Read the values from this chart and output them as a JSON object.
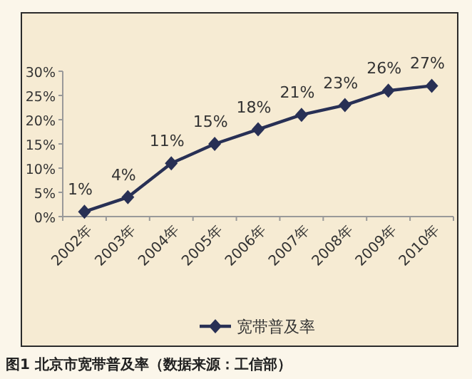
{
  "chart_data": {
    "type": "line",
    "categories": [
      "2002年",
      "2003年",
      "2004年",
      "2005年",
      "2006年",
      "2007年",
      "2008年",
      "2009年",
      "2010年"
    ],
    "series": [
      {
        "name": "宽带普及率",
        "color": "#283055",
        "values": [
          1,
          4,
          11,
          15,
          18,
          21,
          23,
          26,
          27
        ]
      }
    ],
    "value_labels": [
      "1%",
      "4%",
      "11%",
      "15%",
      "18%",
      "21%",
      "23%",
      "26%",
      "27%"
    ],
    "ylim": [
      0,
      30
    ],
    "yticks": [
      {
        "value": 0,
        "label": "0%"
      },
      {
        "value": 5,
        "label": "5%"
      },
      {
        "value": 10,
        "label": "10%"
      },
      {
        "value": 15,
        "label": "15%"
      },
      {
        "value": 20,
        "label": "20%"
      },
      {
        "value": 25,
        "label": "25%"
      },
      {
        "value": 30,
        "label": "30%"
      }
    ],
    "marker": "diamond",
    "legend": "bottom",
    "grid": false,
    "annotations": [
      "图1 北京市宽带普及率（数据来源：工信部）"
    ]
  }
}
